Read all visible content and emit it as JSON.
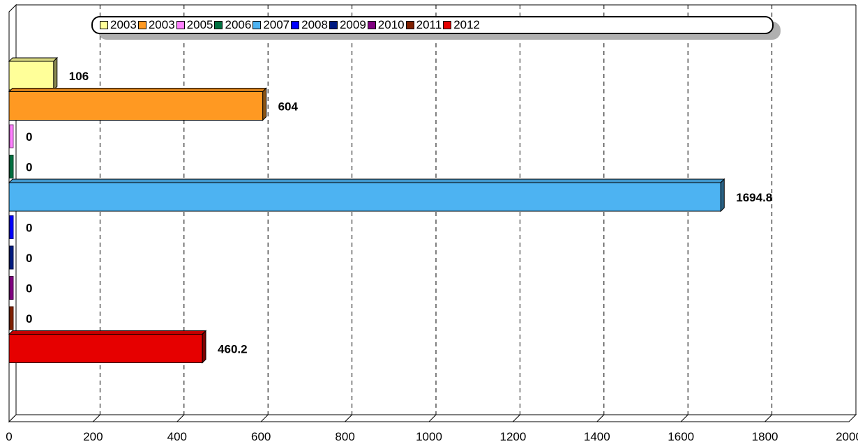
{
  "chart_data": {
    "type": "bar",
    "orientation": "horizontal",
    "series": [
      {
        "name": "2003",
        "value": 106,
        "label": "106",
        "color": "#ffff99"
      },
      {
        "name": "2003",
        "value": 604,
        "label": "604",
        "color": "#ff9922"
      },
      {
        "name": "2005",
        "value": 0,
        "label": "0",
        "color": "#ff80ff"
      },
      {
        "name": "2006",
        "value": 0,
        "label": "0",
        "color": "#007040"
      },
      {
        "name": "2007",
        "value": 1694.8,
        "label": "1694.8",
        "color": "#4db3f2"
      },
      {
        "name": "2008",
        "value": 0,
        "label": "0",
        "color": "#0000ff"
      },
      {
        "name": "2009",
        "value": 0,
        "label": "0",
        "color": "#001a80"
      },
      {
        "name": "2010",
        "value": 0,
        "label": "0",
        "color": "#800080"
      },
      {
        "name": "2011",
        "value": 0,
        "label": "0",
        "color": "#802000"
      },
      {
        "name": "2012",
        "value": 460.2,
        "label": "460.2",
        "color": "#e60000"
      }
    ],
    "xlim": [
      0,
      2000
    ],
    "x_ticks": [
      "0",
      "200",
      "400",
      "600",
      "800",
      "1000",
      "1200",
      "1400",
      "1600",
      "1800",
      "2000"
    ],
    "grid": "vertical dashed",
    "legend_position": "top",
    "style": "3d"
  }
}
